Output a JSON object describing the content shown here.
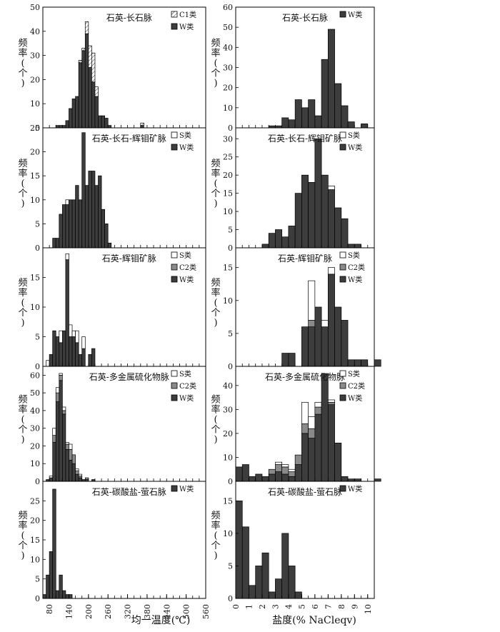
{
  "figure": {
    "x_axis_title_left": "均一温度(℃)",
    "x_axis_title_right": "盐度(% NaCleqv)",
    "y_axis_title": [
      "频",
      "率",
      "(",
      "个",
      ")"
    ]
  },
  "colors": {
    "W": "#3d3d3d",
    "C2": "#8a8a8a",
    "S": "#ffffff",
    "C1": "hatch"
  },
  "legend_labels": {
    "C1": "C1类",
    "W": "W类",
    "S": "S类",
    "C2": "C2类"
  },
  "chart_data": [
    {
      "type": "bar",
      "stacked": true,
      "column": "left",
      "row": 0,
      "title": "石英-长石脉",
      "bin_start": 60,
      "bin_width": 10,
      "xlim": [
        60,
        560
      ],
      "x_ticks": [
        80,
        140,
        200,
        260,
        320,
        380,
        440,
        500,
        560
      ],
      "ylim": [
        0,
        50
      ],
      "y_ticks": [
        0,
        10,
        20,
        30,
        40,
        50
      ],
      "legend": [
        "C1",
        "W"
      ],
      "series": [
        {
          "name": "W",
          "values": [
            0,
            0,
            0,
            0,
            1,
            1,
            1,
            3,
            8,
            12,
            13,
            27,
            32,
            39,
            25,
            19,
            13,
            5,
            5,
            4,
            1,
            0,
            0,
            0,
            0,
            0,
            0,
            0,
            0,
            0,
            1,
            0,
            0,
            0,
            0,
            0,
            0,
            0,
            0,
            0,
            0,
            0,
            0,
            0,
            0,
            0,
            0,
            0,
            0,
            0
          ]
        },
        {
          "name": "C1",
          "values": [
            0,
            0,
            0,
            0,
            0,
            0,
            0,
            0,
            0,
            0,
            0,
            1,
            1,
            5,
            9,
            12,
            4,
            0,
            0,
            0,
            0,
            0,
            0,
            0,
            0,
            0,
            0,
            0,
            0,
            0,
            1,
            0,
            0,
            0,
            0,
            0,
            0,
            0,
            0,
            0,
            0,
            0,
            0,
            0,
            0,
            0,
            0,
            0,
            0,
            0
          ]
        }
      ]
    },
    {
      "type": "bar",
      "stacked": true,
      "column": "left",
      "row": 1,
      "title": "石英-长石-辉钼矿脉",
      "bin_start": 60,
      "bin_width": 10,
      "xlim": [
        60,
        560
      ],
      "x_ticks": [
        80,
        140,
        200,
        260,
        320,
        380,
        440,
        500,
        560
      ],
      "ylim": [
        0,
        25
      ],
      "y_ticks": [
        0,
        5,
        10,
        15,
        20,
        25
      ],
      "legend": [
        "S",
        "W"
      ],
      "series": [
        {
          "name": "W",
          "values": [
            0,
            0,
            0,
            2,
            2,
            7,
            9,
            9,
            10,
            10,
            13,
            10,
            24,
            13,
            16,
            16,
            13,
            15,
            8,
            5,
            1,
            0,
            0,
            0,
            0,
            0,
            0,
            0,
            0,
            0,
            0,
            0,
            0,
            0,
            0,
            0,
            0,
            0,
            0,
            0,
            0,
            0,
            0,
            0,
            0,
            0,
            0,
            0,
            0,
            0
          ]
        },
        {
          "name": "S",
          "values": [
            0,
            0,
            0,
            0,
            0,
            0,
            0,
            1,
            0,
            0,
            0,
            0,
            0,
            0,
            0,
            0,
            0,
            0,
            0,
            0,
            0,
            0,
            0,
            0,
            0,
            0,
            0,
            0,
            0,
            0,
            0,
            0,
            0,
            0,
            0,
            0,
            0,
            0,
            0,
            0,
            0,
            0,
            0,
            0,
            0,
            0,
            0,
            0,
            0,
            0
          ]
        }
      ]
    },
    {
      "type": "bar",
      "stacked": true,
      "column": "left",
      "row": 2,
      "title": "石英-辉钼矿脉",
      "bin_start": 60,
      "bin_width": 10,
      "xlim": [
        60,
        560
      ],
      "x_ticks": [
        80,
        140,
        200,
        260,
        320,
        380,
        440,
        500,
        560
      ],
      "ylim": [
        0,
        20
      ],
      "y_ticks": [
        0,
        5,
        10,
        15
      ],
      "legend": [
        "S",
        "C2",
        "W"
      ],
      "series": [
        {
          "name": "W",
          "values": [
            0,
            0,
            2,
            6,
            5,
            4,
            6,
            18,
            5,
            5,
            4,
            2,
            3,
            0,
            2,
            3,
            0,
            0,
            0,
            0,
            0,
            0,
            0,
            0,
            0,
            0,
            0,
            0,
            0,
            0,
            0,
            0,
            0,
            0,
            0,
            0,
            0,
            0,
            0,
            0,
            0,
            0,
            0,
            0,
            0,
            0,
            0,
            0,
            0,
            0
          ]
        },
        {
          "name": "C2",
          "values": [
            0,
            0,
            0,
            0,
            0,
            0,
            0,
            0,
            0,
            0,
            0,
            0,
            0,
            0,
            0,
            0,
            0,
            0,
            0,
            0,
            0,
            0,
            0,
            0,
            0,
            0,
            0,
            0,
            0,
            0,
            0,
            0,
            0,
            0,
            0,
            0,
            0,
            0,
            0,
            0,
            0,
            0,
            0,
            0,
            0,
            0,
            0,
            0,
            0,
            0
          ]
        },
        {
          "name": "S",
          "values": [
            0,
            1,
            0,
            0,
            0,
            2,
            0,
            1,
            2,
            1,
            2,
            0,
            2,
            0,
            0,
            0,
            0,
            0,
            0,
            0,
            0,
            0,
            0,
            0,
            0,
            0,
            0,
            0,
            0,
            0,
            0,
            0,
            0,
            0,
            0,
            0,
            0,
            0,
            0,
            0,
            0,
            0,
            0,
            0,
            0,
            0,
            0,
            0,
            0,
            0
          ]
        }
      ]
    },
    {
      "type": "bar",
      "stacked": true,
      "column": "left",
      "row": 3,
      "title": "石英-多金属硫化物脉",
      "bin_start": 60,
      "bin_width": 10,
      "xlim": [
        60,
        560
      ],
      "x_ticks": [
        80,
        140,
        200,
        260,
        320,
        380,
        440,
        500,
        560
      ],
      "ylim": [
        0,
        65
      ],
      "y_ticks": [
        0,
        10,
        20,
        30,
        40,
        50,
        60
      ],
      "legend": [
        "S",
        "C2",
        "W"
      ],
      "series": [
        {
          "name": "W",
          "values": [
            0,
            1,
            2,
            22,
            45,
            57,
            38,
            18,
            12,
            10,
            4,
            2,
            1,
            1,
            0,
            1,
            0,
            0,
            0,
            0,
            0,
            0,
            0,
            0,
            0,
            0,
            0,
            0,
            0,
            0,
            0,
            0,
            0,
            0,
            0,
            0,
            0,
            0,
            0,
            0,
            0,
            0,
            0,
            0,
            0,
            0,
            0,
            0,
            0,
            0
          ]
        },
        {
          "name": "C2",
          "values": [
            0,
            0,
            0,
            4,
            5,
            3,
            2,
            3,
            6,
            5,
            2,
            1,
            0,
            1,
            0,
            0,
            0,
            0,
            0,
            0,
            0,
            0,
            0,
            0,
            0,
            0,
            0,
            0,
            0,
            0,
            0,
            0,
            0,
            0,
            0,
            0,
            0,
            0,
            0,
            0,
            0,
            0,
            0,
            0,
            0,
            0,
            0,
            0,
            0,
            0
          ]
        },
        {
          "name": "S",
          "values": [
            0,
            0,
            1,
            4,
            3,
            1,
            2,
            1,
            3,
            0,
            1,
            1,
            0,
            0,
            0,
            0,
            0,
            0,
            0,
            0,
            0,
            0,
            0,
            0,
            0,
            0,
            0,
            0,
            0,
            0,
            0,
            0,
            0,
            0,
            0,
            0,
            0,
            0,
            0,
            0,
            0,
            0,
            0,
            0,
            0,
            0,
            0,
            0,
            0,
            0
          ]
        }
      ]
    },
    {
      "type": "bar",
      "stacked": true,
      "column": "left",
      "row": 4,
      "title": "石英-碳酸盐-萤石脉",
      "bin_start": 60,
      "bin_width": 10,
      "xlim": [
        60,
        560
      ],
      "x_ticks": [
        80,
        140,
        200,
        260,
        320,
        380,
        440,
        500,
        560
      ],
      "ylim": [
        0,
        30
      ],
      "y_ticks": [
        0,
        5,
        10,
        15,
        20,
        25
      ],
      "legend": [
        "W"
      ],
      "series": [
        {
          "name": "W",
          "values": [
            1,
            6,
            12,
            28,
            2,
            6,
            2,
            1,
            1,
            0,
            0,
            0,
            0,
            0,
            0,
            0,
            0,
            0,
            0,
            0,
            0,
            0,
            0,
            0,
            0,
            0,
            0,
            0,
            0,
            0,
            0,
            0,
            0,
            0,
            0,
            0,
            0,
            0,
            0,
            0,
            0,
            0,
            0,
            0,
            0,
            0,
            0,
            0,
            0,
            0
          ]
        }
      ]
    },
    {
      "type": "bar",
      "stacked": true,
      "column": "right",
      "row": 0,
      "title": "石英-长石脉",
      "bin_start": 0,
      "bin_width": 0.5,
      "xlim": [
        0,
        10.5
      ],
      "x_ticks": [
        0,
        1,
        2,
        3,
        4,
        5,
        6,
        7,
        8,
        9,
        10
      ],
      "ylim": [
        0,
        60
      ],
      "y_ticks": [
        0,
        10,
        20,
        30,
        40,
        50,
        60
      ],
      "legend": [
        "W"
      ],
      "series": [
        {
          "name": "W",
          "values": [
            0,
            0,
            0,
            0,
            0,
            1,
            1,
            5,
            4,
            14,
            10,
            14,
            6,
            34,
            49,
            22,
            11,
            3,
            0,
            2,
            0
          ]
        }
      ]
    },
    {
      "type": "bar",
      "stacked": true,
      "column": "right",
      "row": 1,
      "title": "石英-长石-辉钼矿脉",
      "bin_start": 0,
      "bin_width": 0.5,
      "xlim": [
        0,
        10.5
      ],
      "x_ticks": [
        0,
        1,
        2,
        3,
        4,
        5,
        6,
        7,
        8,
        9,
        10
      ],
      "ylim": [
        0,
        33
      ],
      "y_ticks": [
        0,
        5,
        10,
        15,
        20,
        25,
        30
      ],
      "legend": [
        "S",
        "W"
      ],
      "series": [
        {
          "name": "W",
          "values": [
            0,
            0,
            0,
            0,
            1,
            4,
            5,
            3,
            6,
            15,
            20,
            18,
            30,
            20,
            16,
            11,
            8,
            1,
            1,
            0,
            0
          ]
        },
        {
          "name": "S",
          "values": [
            0,
            0,
            0,
            0,
            0,
            0,
            0,
            0,
            0,
            0,
            0,
            0,
            0,
            0,
            1,
            0,
            0,
            0,
            0,
            0,
            0
          ]
        }
      ]
    },
    {
      "type": "bar",
      "stacked": true,
      "column": "right",
      "row": 2,
      "title": "石英-辉钼矿脉",
      "bin_start": 0,
      "bin_width": 0.5,
      "xlim": [
        0,
        10.5
      ],
      "x_ticks": [
        0,
        1,
        2,
        3,
        4,
        5,
        6,
        7,
        8,
        9,
        10
      ],
      "ylim": [
        0,
        18
      ],
      "y_ticks": [
        0,
        5,
        10,
        15
      ],
      "legend": [
        "S",
        "C2",
        "W"
      ],
      "series": [
        {
          "name": "W",
          "values": [
            0,
            0,
            0,
            0,
            0,
            0,
            0,
            2,
            2,
            0,
            6,
            6,
            9,
            6,
            14,
            9,
            7,
            1,
            1,
            1,
            0,
            1
          ]
        },
        {
          "name": "C2",
          "values": [
            0,
            0,
            0,
            0,
            0,
            0,
            0,
            0,
            0,
            0,
            0,
            1,
            0,
            0,
            0,
            0,
            0,
            0,
            0,
            0,
            0,
            0
          ]
        },
        {
          "name": "S",
          "values": [
            0,
            0,
            0,
            0,
            0,
            0,
            0,
            0,
            0,
            0,
            0,
            6,
            0,
            1,
            1,
            0,
            0,
            0,
            0,
            0,
            0,
            0
          ]
        }
      ]
    },
    {
      "type": "bar",
      "stacked": true,
      "column": "right",
      "row": 3,
      "title": "石英-多金属硫化物脉",
      "bin_start": 0,
      "bin_width": 0.5,
      "xlim": [
        0,
        10.5
      ],
      "x_ticks": [
        0,
        1,
        2,
        3,
        4,
        5,
        6,
        7,
        8,
        9,
        10
      ],
      "ylim": [
        0,
        48
      ],
      "y_ticks": [
        0,
        10,
        20,
        30,
        40
      ],
      "legend": [
        "S",
        "C2",
        "W"
      ],
      "series": [
        {
          "name": "W",
          "values": [
            6,
            7,
            2,
            3,
            2,
            3,
            4,
            3,
            2,
            7,
            20,
            18,
            28,
            45,
            32,
            16,
            2,
            1,
            1,
            0,
            0,
            1
          ]
        },
        {
          "name": "C2",
          "values": [
            0,
            0,
            0,
            0,
            0,
            2,
            3,
            3,
            2,
            4,
            4,
            4,
            3,
            0,
            1,
            0,
            0,
            0,
            0,
            0,
            0,
            0
          ]
        },
        {
          "name": "S",
          "values": [
            0,
            0,
            0,
            0,
            0,
            0,
            1,
            1,
            1,
            0,
            9,
            5,
            2,
            0,
            1,
            0,
            0,
            0,
            0,
            0,
            0,
            0
          ]
        }
      ]
    },
    {
      "type": "bar",
      "stacked": true,
      "column": "right",
      "row": 4,
      "title": "石英-碳酸盐-萤石脉",
      "bin_start": 0,
      "bin_width": 0.5,
      "xlim": [
        0,
        10.5
      ],
      "x_ticks": [
        0,
        1,
        2,
        3,
        4,
        5,
        6,
        7,
        8,
        9,
        10
      ],
      "ylim": [
        0,
        18
      ],
      "y_ticks": [
        0,
        5,
        10,
        15
      ],
      "legend": [
        "W"
      ],
      "series": [
        {
          "name": "W",
          "values": [
            15,
            11,
            2,
            5,
            7,
            1,
            3,
            10,
            5,
            1,
            0,
            0,
            0,
            0,
            0,
            0,
            0,
            0,
            0,
            0,
            0
          ]
        }
      ]
    }
  ]
}
